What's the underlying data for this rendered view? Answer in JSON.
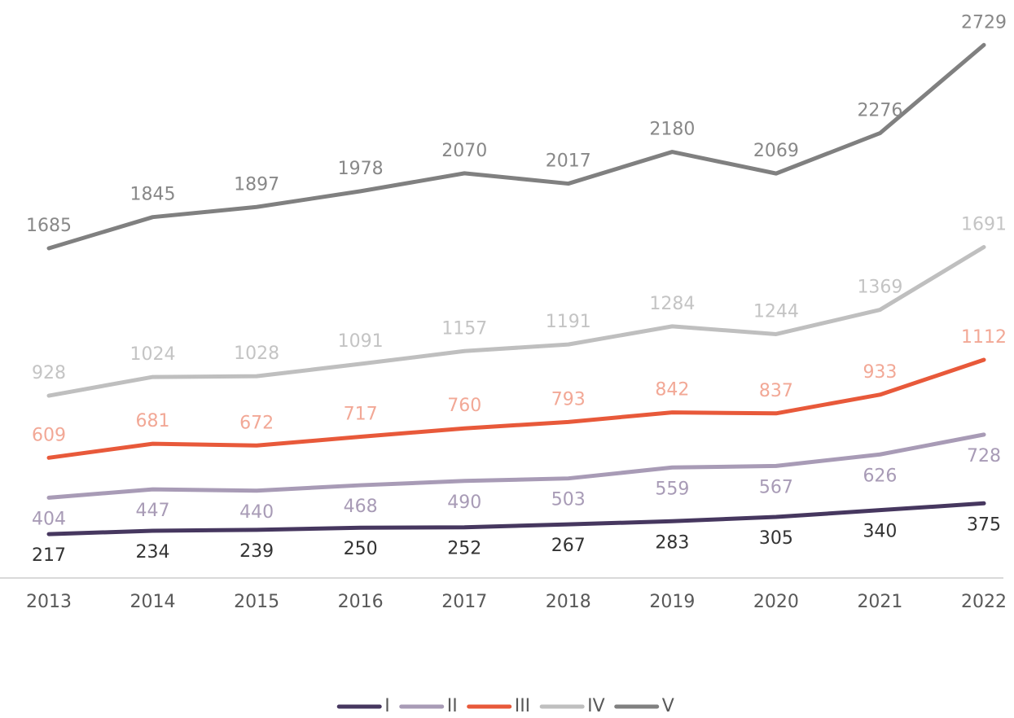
{
  "chart_data": {
    "type": "line",
    "categories": [
      "2013",
      "2014",
      "2015",
      "2016",
      "2017",
      "2018",
      "2019",
      "2020",
      "2021",
      "2022"
    ],
    "ylim": [
      0,
      2960
    ],
    "series": [
      {
        "name": "I",
        "color": "#46375f",
        "label_color": "#333333",
        "label_position": "below",
        "values": [
          217,
          234,
          239,
          250,
          252,
          267,
          283,
          305,
          340,
          375
        ]
      },
      {
        "name": "II",
        "color": "#a89bb6",
        "label_color": "#a89bb6",
        "label_position": "below",
        "values": [
          404,
          447,
          440,
          468,
          490,
          503,
          559,
          567,
          626,
          728
        ]
      },
      {
        "name": "III",
        "color": "#e8593a",
        "label_color": "#f2a896",
        "label_position": "above",
        "values": [
          609,
          681,
          672,
          717,
          760,
          793,
          842,
          837,
          933,
          1112
        ]
      },
      {
        "name": "IV",
        "color": "#bfbfbf",
        "label_color": "#c4c4c4",
        "label_position": "above",
        "values": [
          928,
          1024,
          1028,
          1091,
          1157,
          1191,
          1284,
          1244,
          1369,
          1691
        ]
      },
      {
        "name": "V",
        "color": "#808080",
        "label_color": "#888888",
        "label_position": "above",
        "values": [
          1685,
          1845,
          1897,
          1978,
          2070,
          2017,
          2180,
          2069,
          2276,
          2729
        ]
      }
    ],
    "legend": "bottom"
  }
}
